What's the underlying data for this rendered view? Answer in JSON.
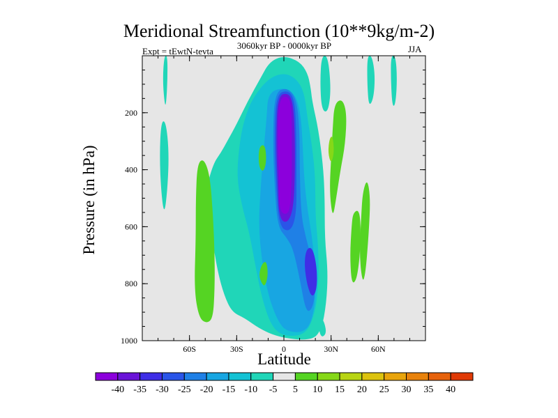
{
  "chart_data": {
    "type": "contour",
    "title": "Meridional Streamfunction (10**9kg/m-2)",
    "experiment": "Expt = tEwtN-tevta",
    "period": "3060kyr BP - 0000kyr BP",
    "season": "JJA",
    "xlabel": "Latitude",
    "ylabel": "Pressure (in hPa)",
    "xlim": [
      -90,
      90
    ],
    "ylim": [
      1000,
      0
    ],
    "x_ticks": [
      {
        "value": -60,
        "label": "60S"
      },
      {
        "value": -30,
        "label": "30S"
      },
      {
        "value": 0,
        "label": "0"
      },
      {
        "value": 30,
        "label": "30N"
      },
      {
        "value": 60,
        "label": "60N"
      }
    ],
    "y_ticks": [
      {
        "value": 200,
        "label": "200"
      },
      {
        "value": 400,
        "label": "400"
      },
      {
        "value": 600,
        "label": "600"
      },
      {
        "value": 800,
        "label": "800"
      },
      {
        "value": 1000,
        "label": "1000"
      }
    ],
    "colorbar": {
      "labels": [
        "-40",
        "-35",
        "-30",
        "-25",
        "-20",
        "-15",
        "-10",
        "-5",
        "5",
        "10",
        "15",
        "20",
        "25",
        "30",
        "35",
        "40"
      ],
      "colors": [
        "#8c00dc",
        "#6a14d8",
        "#3f2ee6",
        "#2a55e8",
        "#1f80e6",
        "#18a6e2",
        "#14c2d4",
        "#20d6b8",
        "#e6e6e6",
        "#55d423",
        "#86d818",
        "#b8d414",
        "#dcc20e",
        "#e8a40c",
        "#e8820c",
        "#e6620c",
        "#e03a06"
      ]
    },
    "regions": [
      {
        "level": "-5",
        "color": "#20d6b8",
        "points": [
          [
            -50,
            480
          ],
          [
            -45,
            380
          ],
          [
            -40,
            340
          ],
          [
            -36,
            300
          ],
          [
            -30,
            240
          ],
          [
            -23,
            160
          ],
          [
            -15,
            80
          ],
          [
            -9,
            20
          ],
          [
            0,
            0
          ],
          [
            10,
            20
          ],
          [
            15,
            60
          ],
          [
            17,
            110
          ],
          [
            18,
            160
          ],
          [
            22,
            260
          ],
          [
            25,
            390
          ],
          [
            26,
            500
          ],
          [
            26,
            640
          ],
          [
            28,
            760
          ],
          [
            27,
            870
          ],
          [
            24,
            960
          ],
          [
            18,
            1000
          ],
          [
            -2,
            990
          ],
          [
            -15,
            960
          ],
          [
            -25,
            920
          ],
          [
            -33,
            900
          ],
          [
            -38,
            840
          ],
          [
            -42,
            760
          ],
          [
            -45,
            660
          ],
          [
            -50,
            560
          ]
        ]
      },
      {
        "level": "-10",
        "color": "#14c2d4",
        "points": [
          [
            -30,
            420
          ],
          [
            -28,
            300
          ],
          [
            -25,
            220
          ],
          [
            -20,
            150
          ],
          [
            -10,
            80
          ],
          [
            0,
            60
          ],
          [
            8,
            80
          ],
          [
            13,
            130
          ],
          [
            15,
            220
          ],
          [
            18,
            320
          ],
          [
            20,
            430
          ],
          [
            20,
            560
          ],
          [
            22,
            680
          ],
          [
            22,
            800
          ],
          [
            20,
            900
          ],
          [
            14,
            980
          ],
          [
            0,
            985
          ],
          [
            -8,
            950
          ],
          [
            -14,
            850
          ],
          [
            -18,
            740
          ],
          [
            -22,
            620
          ],
          [
            -27,
            520
          ]
        ]
      },
      {
        "level": "-15",
        "color": "#18a6e2",
        "points": [
          [
            -10,
            130
          ],
          [
            0,
            110
          ],
          [
            8,
            140
          ],
          [
            11,
            220
          ],
          [
            12,
            320
          ],
          [
            13,
            440
          ],
          [
            15,
            540
          ],
          [
            18,
            640
          ],
          [
            20,
            760
          ],
          [
            20,
            880
          ],
          [
            15,
            970
          ],
          [
            2,
            970
          ],
          [
            -4,
            930
          ],
          [
            -10,
            840
          ],
          [
            -14,
            720
          ],
          [
            -16,
            600
          ],
          [
            -15,
            480
          ],
          [
            -13,
            340
          ],
          [
            -11,
            220
          ]
        ]
      },
      {
        "level": "-20",
        "color": "#1f80e6",
        "points": [
          [
            -6,
            130
          ],
          [
            2,
            110
          ],
          [
            8,
            150
          ],
          [
            10,
            260
          ],
          [
            10,
            400
          ],
          [
            11,
            560
          ],
          [
            14,
            640
          ],
          [
            18,
            720
          ],
          [
            20,
            830
          ],
          [
            18,
            890
          ],
          [
            14,
            900
          ],
          [
            10,
            780
          ],
          [
            6,
            680
          ],
          [
            2,
            640
          ],
          [
            -4,
            600
          ],
          [
            -6,
            450
          ],
          [
            -7,
            300
          ]
        ]
      },
      {
        "level": "-25",
        "color": "#2a55e8",
        "points": [
          [
            -5,
            135
          ],
          [
            3,
            120
          ],
          [
            7,
            160
          ],
          [
            8,
            280
          ],
          [
            8,
            420
          ],
          [
            8,
            560
          ],
          [
            4,
            620
          ],
          [
            -3,
            600
          ],
          [
            -5,
            450
          ],
          [
            -6,
            300
          ]
        ]
      },
      {
        "level": "-30",
        "color": "#3f2ee6",
        "points": [
          [
            14,
            680
          ],
          [
            18,
            670
          ],
          [
            21,
            740
          ],
          [
            21,
            820
          ],
          [
            18,
            850
          ],
          [
            15,
            810
          ],
          [
            13,
            740
          ]
        ]
      },
      {
        "level": "-35",
        "color": "#6a14d8",
        "points": [
          [
            -4,
            140
          ],
          [
            3,
            130
          ],
          [
            6,
            170
          ],
          [
            7,
            290
          ],
          [
            7,
            420
          ],
          [
            6,
            540
          ],
          [
            2,
            590
          ],
          [
            -3,
            570
          ],
          [
            -4,
            450
          ],
          [
            -5,
            300
          ]
        ]
      },
      {
        "level": "-40",
        "color": "#8c00dc",
        "points": [
          [
            -3,
            150
          ],
          [
            3,
            140
          ],
          [
            5,
            190
          ],
          [
            5,
            320
          ],
          [
            5,
            440
          ],
          [
            4,
            540
          ],
          [
            1,
            560
          ],
          [
            -3,
            540
          ],
          [
            -3,
            420
          ],
          [
            -4,
            280
          ]
        ]
      },
      {
        "level": "-15",
        "color": "#18a6e2",
        "points": [
          [
            0,
            860
          ],
          [
            4,
            850
          ],
          [
            5,
            890
          ],
          [
            3,
            920
          ],
          [
            0,
            915
          ]
        ]
      },
      {
        "level": "-5",
        "color": "#20d6b8",
        "points": [
          [
            -76,
            0
          ],
          [
            -74,
            0
          ],
          [
            -74,
            90
          ],
          [
            -75,
            180
          ],
          [
            -76,
            160
          ],
          [
            -77,
            80
          ]
        ]
      },
      {
        "level": "-5",
        "color": "#20d6b8",
        "points": [
          [
            -78,
            230
          ],
          [
            -75,
            230
          ],
          [
            -73,
            340
          ],
          [
            -74,
            470
          ],
          [
            -76,
            560
          ],
          [
            -78,
            480
          ],
          [
            -79,
            350
          ]
        ]
      },
      {
        "level": "-5",
        "color": "#20d6b8",
        "points": [
          [
            53,
            0
          ],
          [
            56,
            0
          ],
          [
            58,
            70
          ],
          [
            57,
            150
          ],
          [
            54,
            180
          ],
          [
            53,
            100
          ]
        ]
      },
      {
        "level": "-5",
        "color": "#20d6b8",
        "points": [
          [
            68,
            0
          ],
          [
            71,
            0
          ],
          [
            72,
            80
          ],
          [
            71,
            170
          ],
          [
            69,
            180
          ],
          [
            68,
            90
          ]
        ]
      },
      {
        "level": "-5",
        "color": "#20d6b8",
        "points": [
          [
            24,
            0
          ],
          [
            28,
            0
          ],
          [
            30,
            120
          ],
          [
            28,
            200
          ],
          [
            24,
            190
          ],
          [
            23,
            90
          ]
        ]
      },
      {
        "level": "-5",
        "color": "#20d6b8",
        "points": [
          [
            24,
            920
          ],
          [
            26,
            940
          ],
          [
            27,
            975
          ],
          [
            24,
            990
          ],
          [
            22,
            960
          ]
        ]
      },
      {
        "level": "5",
        "color": "#55d423",
        "points": [
          [
            -55,
            380
          ],
          [
            -51,
            360
          ],
          [
            -47,
            420
          ],
          [
            -45,
            560
          ],
          [
            -44,
            700
          ],
          [
            -44,
            820
          ],
          [
            -45,
            920
          ],
          [
            -49,
            940
          ],
          [
            -54,
            920
          ],
          [
            -57,
            820
          ],
          [
            -56,
            640
          ],
          [
            -56,
            500
          ]
        ]
      },
      {
        "level": "5",
        "color": "#55d423",
        "points": [
          [
            32,
            170
          ],
          [
            37,
            150
          ],
          [
            40,
            200
          ],
          [
            39,
            310
          ],
          [
            36,
            400
          ],
          [
            33,
            510
          ],
          [
            31,
            570
          ],
          [
            29,
            480
          ],
          [
            30,
            360
          ],
          [
            31,
            260
          ]
        ]
      },
      {
        "level": "5",
        "color": "#55d423",
        "points": [
          [
            44,
            550
          ],
          [
            48,
            540
          ],
          [
            49,
            620
          ],
          [
            48,
            720
          ],
          [
            46,
            790
          ],
          [
            43,
            800
          ],
          [
            42,
            700
          ],
          [
            43,
            600
          ]
        ]
      },
      {
        "level": "5",
        "color": "#55d423",
        "points": [
          [
            50,
            480
          ],
          [
            53,
            430
          ],
          [
            55,
            500
          ],
          [
            54,
            620
          ],
          [
            52,
            760
          ],
          [
            50,
            800
          ],
          [
            48,
            700
          ],
          [
            49,
            580
          ]
        ]
      },
      {
        "level": "5",
        "color": "#55d423",
        "points": [
          [
            -16,
            320
          ],
          [
            -12,
            310
          ],
          [
            -11,
            370
          ],
          [
            -13,
            410
          ],
          [
            -16,
            390
          ]
        ]
      },
      {
        "level": "5",
        "color": "#55d423",
        "points": [
          [
            -14,
            730
          ],
          [
            -11,
            720
          ],
          [
            -10,
            770
          ],
          [
            -12,
            810
          ],
          [
            -14,
            800
          ],
          [
            -16,
            770
          ]
        ]
      },
      {
        "level": "10",
        "color": "#86d818",
        "points": [
          [
            29,
            290
          ],
          [
            31,
            280
          ],
          [
            32,
            340
          ],
          [
            30,
            380
          ],
          [
            28,
            340
          ]
        ]
      }
    ]
  }
}
